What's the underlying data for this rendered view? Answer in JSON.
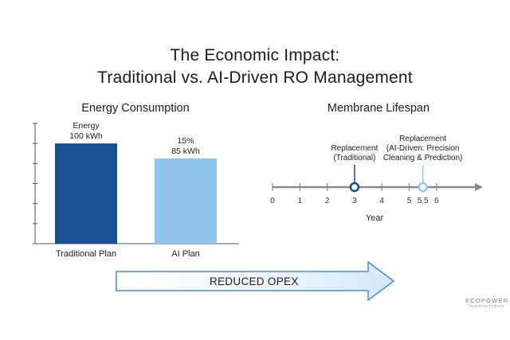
{
  "title_line1": "The Economic Impact:",
  "title_line2": "Traditional vs. AI-Driven RO Management",
  "colors": {
    "dark_blue": "#174f8f",
    "light_blue": "#8fc5ea",
    "axis": "#8a8a8a"
  },
  "chart_data": [
    {
      "type": "bar",
      "title": "Energy Consumption",
      "categories": [
        "Traditional Plan",
        "AI Plan"
      ],
      "values": [
        100,
        85
      ],
      "unit": "kWh",
      "data_labels": [
        {
          "line1": "Energy",
          "line2": "100 kWh"
        },
        {
          "line1": "15%",
          "line2": "85 kWh"
        }
      ],
      "ylim": [
        0,
        120
      ],
      "xlabel": "",
      "ylabel": ""
    },
    {
      "type": "timeline",
      "title": "Membrane Lifespan",
      "xlabel": "Year",
      "ticks": [
        "0",
        "1",
        "2",
        "3",
        "4",
        "5",
        "5.5",
        "6"
      ],
      "tick_values": [
        0,
        1,
        2,
        3,
        4,
        5,
        5.5,
        6
      ],
      "xlim": [
        0,
        6.5
      ],
      "markers": [
        {
          "x": 3,
          "lines": [
            "Replacement",
            "(Traditional)"
          ],
          "color": "#174f8f"
        },
        {
          "x": 5.5,
          "lines": [
            "Replacement",
            "(AI-Driven: Precision",
            "Cleaning & Prediction)"
          ],
          "color": "#8fc5ea"
        }
      ]
    }
  ],
  "arrow": {
    "label": "REDUCED OPEX"
  },
  "logo": {
    "line1": "ECOPOWER",
    "line2": "INNOVATIONS"
  }
}
